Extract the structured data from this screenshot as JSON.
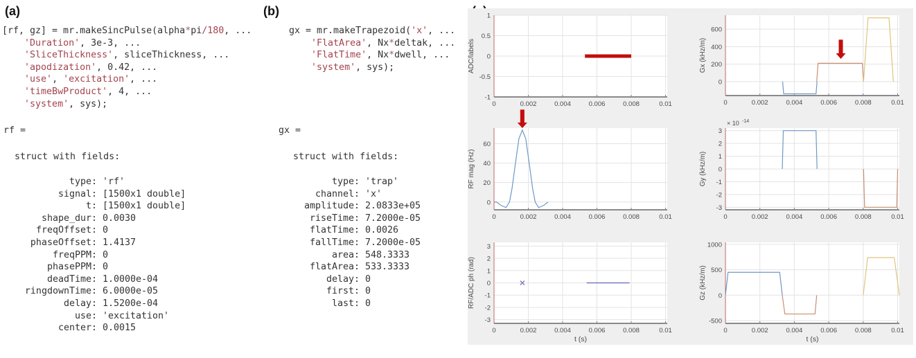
{
  "panel_a": {
    "label": "(a)",
    "code": [
      [
        {
          "t": "[rf, gz] = mr.makeSincPulse(alpha",
          "c": "k"
        },
        {
          "t": "*",
          "c": "o"
        },
        {
          "t": "pi",
          "c": "k"
        },
        {
          "t": "/180",
          "c": "s"
        },
        {
          "t": ", ...",
          "c": "k"
        }
      ],
      [
        {
          "t": "    ",
          "c": "k"
        },
        {
          "t": "'Duration'",
          "c": "s"
        },
        {
          "t": ", 3e-3, ...",
          "c": "k"
        }
      ],
      [
        {
          "t": "    ",
          "c": "k"
        },
        {
          "t": "'SliceThickness'",
          "c": "s"
        },
        {
          "t": ", sliceThickness, ...",
          "c": "k"
        }
      ],
      [
        {
          "t": "    ",
          "c": "k"
        },
        {
          "t": "'apodization'",
          "c": "s"
        },
        {
          "t": ", 0.42, ...",
          "c": "k"
        }
      ],
      [
        {
          "t": "    ",
          "c": "k"
        },
        {
          "t": "'use'",
          "c": "s"
        },
        {
          "t": ", ",
          "c": "k"
        },
        {
          "t": "'excitation'",
          "c": "s"
        },
        {
          "t": ", ...",
          "c": "k"
        }
      ],
      [
        {
          "t": "    ",
          "c": "k"
        },
        {
          "t": "'timeBwProduct'",
          "c": "s"
        },
        {
          "t": ", 4, ...",
          "c": "k"
        }
      ],
      [
        {
          "t": "    ",
          "c": "k"
        },
        {
          "t": "'system'",
          "c": "s"
        },
        {
          "t": ", sys);",
          "c": "k"
        }
      ]
    ],
    "var_line": "rf =",
    "struct_line": "struct with fields:",
    "fields": [
      {
        "key": "type:",
        "value": "'rf'"
      },
      {
        "key": "signal:",
        "value": "[1500x1 double]"
      },
      {
        "key": "t:",
        "value": "[1500x1 double]"
      },
      {
        "key": "shape_dur:",
        "value": "0.0030"
      },
      {
        "key": "freqOffset:",
        "value": "0"
      },
      {
        "key": "phaseOffset:",
        "value": "1.4137"
      },
      {
        "key": "freqPPM:",
        "value": "0"
      },
      {
        "key": "phasePPM:",
        "value": "0"
      },
      {
        "key": "deadTime:",
        "value": "1.0000e-04"
      },
      {
        "key": "ringdownTime:",
        "value": "6.0000e-05"
      },
      {
        "key": "delay:",
        "value": "1.5200e-04"
      },
      {
        "key": "use:",
        "value": "'excitation'"
      },
      {
        "key": "center:",
        "value": "0.0015"
      }
    ]
  },
  "panel_b": {
    "label": "(b)",
    "code": [
      [
        {
          "t": "gx = mr.makeTrapezoid(",
          "c": "k"
        },
        {
          "t": "'x'",
          "c": "s"
        },
        {
          "t": ", ...",
          "c": "k"
        }
      ],
      [
        {
          "t": "    ",
          "c": "k"
        },
        {
          "t": "'FlatArea'",
          "c": "s"
        },
        {
          "t": ", Nx",
          "c": "k"
        },
        {
          "t": "*",
          "c": "o"
        },
        {
          "t": "deltak, ...",
          "c": "k"
        }
      ],
      [
        {
          "t": "    ",
          "c": "k"
        },
        {
          "t": "'FlatTime'",
          "c": "s"
        },
        {
          "t": ", Nx",
          "c": "k"
        },
        {
          "t": "*",
          "c": "o"
        },
        {
          "t": "dwell, ...",
          "c": "k"
        }
      ],
      [
        {
          "t": "    ",
          "c": "k"
        },
        {
          "t": "'system'",
          "c": "s"
        },
        {
          "t": ", sys);",
          "c": "k"
        }
      ]
    ],
    "var_line": "gx =",
    "struct_line": "struct with fields:",
    "fields": [
      {
        "key": "type:",
        "value": "'trap'"
      },
      {
        "key": "channel:",
        "value": "'x'"
      },
      {
        "key": "amplitude:",
        "value": "2.0833e+05"
      },
      {
        "key": "riseTime:",
        "value": "7.2000e-05"
      },
      {
        "key": "flatTime:",
        "value": "0.0026"
      },
      {
        "key": "fallTime:",
        "value": "7.2000e-05"
      },
      {
        "key": "area:",
        "value": "548.3333"
      },
      {
        "key": "flatArea:",
        "value": "533.3333"
      },
      {
        "key": "delay:",
        "value": "0"
      },
      {
        "key": "first:",
        "value": "0"
      },
      {
        "key": "last:",
        "value": "0"
      }
    ]
  },
  "panel_c": {
    "label": "(c)"
  },
  "colors": {
    "blue": "#6f98c4",
    "orange": "#c98f72",
    "yellow": "#dfc47a",
    "red": "#c40c0c",
    "purple": "#7a78c0",
    "grid": "#e3e3e3",
    "bg": "#efefef"
  },
  "chart_data": [
    {
      "id": "adc",
      "type": "line",
      "ylabel": "ADC/labels",
      "xlabel": "",
      "xlim": [
        0,
        0.0101
      ],
      "ylim": [
        -1,
        1
      ],
      "xticks": [
        "0",
        "0.002",
        "0.004",
        "0.006",
        "0.008",
        "0.01"
      ],
      "yticks": [
        "-1",
        "-0.5",
        "0",
        "0.5",
        "1"
      ],
      "series": [
        {
          "name": "ADC",
          "color": "red",
          "width": 5,
          "x": [
            0.0053,
            0.008
          ],
          "y": [
            0,
            0
          ]
        }
      ]
    },
    {
      "id": "gx",
      "type": "line",
      "ylabel": "Gx (kHz/m)",
      "xlabel": "",
      "xlim": [
        0,
        0.0101
      ],
      "ylim": [
        -160,
        760
      ],
      "xticks": [
        "0",
        "0.002",
        "0.004",
        "0.006",
        "0.008",
        "0.01"
      ],
      "yticks": [
        "0",
        "200",
        "400",
        "600"
      ],
      "series": [
        {
          "name": "gx-prephaser",
          "color": "blue",
          "width": 1.2,
          "x": [
            0.00332,
            0.00338,
            0.00526,
            0.00532
          ],
          "y": [
            0,
            -140,
            -140,
            0
          ]
        },
        {
          "name": "gx-readout",
          "color": "orange",
          "width": 1.2,
          "x": [
            0.0053,
            0.00538,
            0.00795,
            0.00802
          ],
          "y": [
            0,
            210,
            210,
            0
          ]
        },
        {
          "name": "gx-spoiler",
          "color": "yellow",
          "width": 1.2,
          "x": [
            0.00802,
            0.00828,
            0.0095,
            0.00975
          ],
          "y": [
            0,
            730,
            730,
            0
          ]
        }
      ],
      "annotation": {
        "type": "arrow",
        "x": 0.0067,
        "y_from": 480,
        "y_to": 260
      }
    },
    {
      "id": "rf_mag",
      "type": "line",
      "ylabel": "RF mag (Hz)",
      "xlabel": "",
      "xlim": [
        0,
        0.0101
      ],
      "ylim": [
        -8,
        76
      ],
      "xticks": [
        "0",
        "0.002",
        "0.004",
        "0.006",
        "0.008",
        "0.01"
      ],
      "yticks": [
        "0",
        "20",
        "40",
        "60"
      ],
      "series": [
        {
          "name": "rf",
          "color": "blue",
          "width": 1.2,
          "x": [
            0,
            0.00015,
            0.0004,
            0.0007,
            0.0009,
            0.00105,
            0.00125,
            0.00145,
            0.00165,
            0.00185,
            0.00205,
            0.00225,
            0.0024,
            0.0026,
            0.0029,
            0.00315
          ],
          "y": [
            0,
            0,
            -3.4,
            -5.7,
            0,
            14,
            40,
            65,
            74,
            65,
            40,
            14,
            0,
            -5.7,
            -3.4,
            0
          ]
        }
      ],
      "annotation": {
        "type": "arrow",
        "x": 0.00165,
        "y_from": 95,
        "y_to": 76
      }
    },
    {
      "id": "gy",
      "type": "line",
      "ylabel": "Gy (kHz/m)",
      "xlabel": "",
      "xlim": [
        0,
        0.0101
      ],
      "ylim": [
        -3.2,
        3.2
      ],
      "exponent": "× 10",
      "exponent_power": "-14",
      "xticks": [
        "0",
        "0.002",
        "0.004",
        "0.006",
        "0.008",
        "0.01"
      ],
      "yticks": [
        "-3",
        "-2",
        "-1",
        "0",
        "1",
        "2",
        "3"
      ],
      "series": [
        {
          "name": "gy-phase",
          "color": "blue",
          "width": 1.2,
          "x": [
            0.0033,
            0.00336,
            0.00526,
            0.00532
          ],
          "y": [
            0,
            3,
            3,
            0
          ]
        },
        {
          "name": "gy-rewind",
          "color": "orange",
          "width": 1.2,
          "x": [
            0.00802,
            0.00808,
            0.00995,
            0.01
          ],
          "y": [
            0,
            -3,
            -3,
            0
          ]
        }
      ]
    },
    {
      "id": "phase",
      "type": "line",
      "ylabel": "RF/ADC ph (rad)",
      "xlabel": "t (s)",
      "xlim": [
        0,
        0.0101
      ],
      "ylim": [
        -3.3,
        3.3
      ],
      "xticks": [
        "0",
        "0.002",
        "0.004",
        "0.006",
        "0.008",
        "0.01"
      ],
      "yticks": [
        "-3",
        "-2",
        "-1",
        "0",
        "1",
        "2",
        "3"
      ],
      "series": [
        {
          "name": "rf-phase",
          "color": "grid",
          "width": 1,
          "x": [
            0,
            0.0031
          ],
          "y": [
            0,
            0
          ]
        },
        {
          "name": "adc-phase",
          "color": "purple",
          "width": 1.5,
          "x": [
            0.0054,
            0.0079
          ],
          "y": [
            0,
            0
          ]
        }
      ],
      "markers": [
        {
          "name": "rf-center",
          "symbol": "x",
          "color": "purple",
          "x": 0.00165,
          "y": 0
        }
      ]
    },
    {
      "id": "gz",
      "type": "line",
      "ylabel": "Gz (kHz/m)",
      "xlabel": "t (s)",
      "xlim": [
        0,
        0.0101
      ],
      "ylim": [
        -555,
        1040
      ],
      "xticks": [
        "0",
        "0.002",
        "0.004",
        "0.006",
        "0.008",
        "0.01"
      ],
      "yticks": [
        "-500",
        "0",
        "500",
        "1000"
      ],
      "series": [
        {
          "name": "gz-slice",
          "color": "blue",
          "width": 1.2,
          "x": [
            0,
            0.00015,
            0.00315,
            0.0033
          ],
          "y": [
            0,
            450,
            450,
            0
          ]
        },
        {
          "name": "gz-rephaser",
          "color": "orange",
          "width": 1.2,
          "x": [
            0.0033,
            0.00345,
            0.0052,
            0.0053
          ],
          "y": [
            0,
            -370,
            -370,
            0
          ]
        },
        {
          "name": "gz-spoiler",
          "color": "yellow",
          "width": 1.2,
          "x": [
            0.008,
            0.00826,
            0.0098,
            0.0101
          ],
          "y": [
            0,
            740,
            740,
            0
          ]
        }
      ]
    }
  ]
}
